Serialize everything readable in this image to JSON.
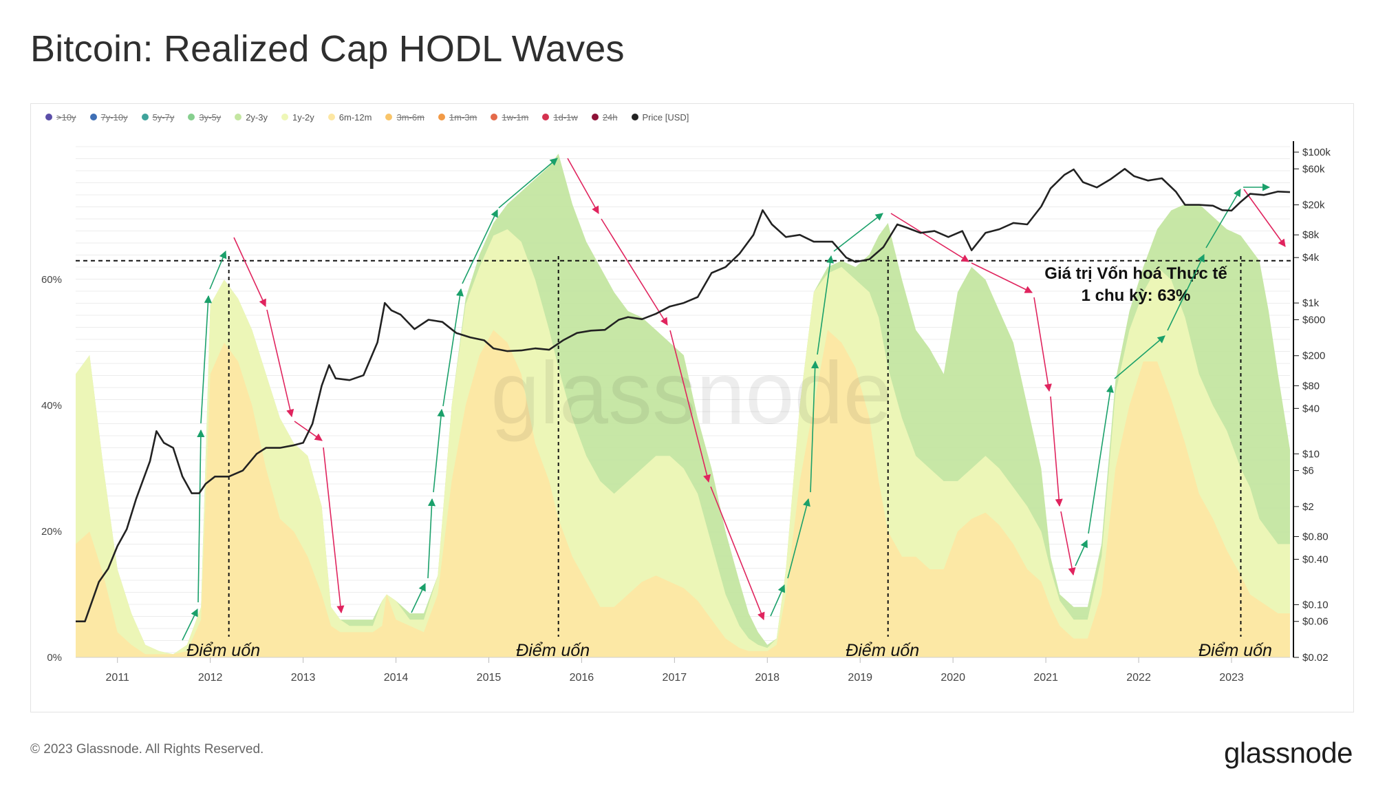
{
  "page": {
    "title": "Bitcoin: Realized Cap HODL Waves",
    "footer": "© 2023 Glassnode. All Rights Reserved.",
    "brand": "glassnode",
    "watermark": "glassnode"
  },
  "legend": [
    {
      "label": ">10y",
      "color": "#5b4ea8",
      "enabled": false
    },
    {
      "label": "7y-10y",
      "color": "#3f6fb5",
      "enabled": false
    },
    {
      "label": "5y-7y",
      "color": "#3fa39b",
      "enabled": false
    },
    {
      "label": "3y-5y",
      "color": "#86cf8e",
      "enabled": false
    },
    {
      "label": "2y-3y",
      "color": "#c4e6a1",
      "enabled": true
    },
    {
      "label": "1y-2y",
      "color": "#eef7b7",
      "enabled": true
    },
    {
      "label": "6m-12m",
      "color": "#fde7a3",
      "enabled": true
    },
    {
      "label": "3m-6m",
      "color": "#f9c56a",
      "enabled": false
    },
    {
      "label": "1m-3m",
      "color": "#f29a46",
      "enabled": false
    },
    {
      "label": "1w-1m",
      "color": "#e46a4a",
      "enabled": false
    },
    {
      "label": "1d-1w",
      "color": "#d4324f",
      "enabled": false
    },
    {
      "label": "24h",
      "color": "#8e1237",
      "enabled": false
    },
    {
      "label": "Price [USD]",
      "color": "#222222",
      "enabled": true
    }
  ],
  "annotations": {
    "threshold_label_line1": "Giá trị Vốn hoá Thực tế",
    "threshold_label_line2": "1 chu kỳ: 63%",
    "inflection_label": "Điểm uốn",
    "inflection_years": [
      2012.2,
      2015.75,
      2019.3,
      2023.1
    ]
  },
  "chart_data": {
    "type": "area",
    "x_axis": {
      "ticks": [
        "2011",
        "2012",
        "2013",
        "2014",
        "2015",
        "2016",
        "2017",
        "2018",
        "2019",
        "2020",
        "2021",
        "2022",
        "2023"
      ],
      "range": [
        2010.55,
        2023.63
      ]
    },
    "y_axis_left": {
      "ticks": [
        "0%",
        "20%",
        "40%",
        "60%"
      ],
      "range": [
        0,
        82
      ]
    },
    "y_axis_right": {
      "scale": "log",
      "ticks": [
        "$100k",
        "$60k",
        "$20k",
        "$8k",
        "$4k",
        "$1k",
        "$600",
        "$200",
        "$80",
        "$40",
        "$10",
        "$6",
        "$2",
        "$0.80",
        "$0.40",
        "$0.10",
        "$0.06",
        "$0.02"
      ],
      "range": [
        0.02,
        140000
      ]
    },
    "threshold_pct": 63,
    "x": [
      2010.55,
      2010.7,
      2010.85,
      2011.0,
      2011.15,
      2011.3,
      2011.45,
      2011.6,
      2011.75,
      2011.9,
      2012.0,
      2012.15,
      2012.3,
      2012.45,
      2012.6,
      2012.75,
      2012.9,
      2013.05,
      2013.2,
      2013.3,
      2013.4,
      2013.5,
      2013.6,
      2013.75,
      2013.85,
      2013.9,
      2014.0,
      2014.15,
      2014.3,
      2014.45,
      2014.6,
      2014.75,
      2014.9,
      2015.05,
      2015.2,
      2015.35,
      2015.5,
      2015.65,
      2015.75,
      2015.9,
      2016.05,
      2016.2,
      2016.35,
      2016.5,
      2016.65,
      2016.8,
      2016.95,
      2017.1,
      2017.25,
      2017.4,
      2017.55,
      2017.7,
      2017.8,
      2017.9,
      2018.0,
      2018.1,
      2018.2,
      2018.35,
      2018.5,
      2018.65,
      2018.8,
      2018.95,
      2019.1,
      2019.2,
      2019.3,
      2019.45,
      2019.6,
      2019.75,
      2019.9,
      2020.05,
      2020.2,
      2020.35,
      2020.5,
      2020.65,
      2020.8,
      2020.95,
      2021.05,
      2021.15,
      2021.3,
      2021.45,
      2021.6,
      2021.75,
      2021.9,
      2022.05,
      2022.2,
      2022.35,
      2022.5,
      2022.65,
      2022.8,
      2022.95,
      2023.1,
      2023.2,
      2023.3,
      2023.4,
      2023.5,
      2023.63
    ],
    "series": [
      {
        "name": "6m-12m",
        "color": "#fde7a3",
        "values": [
          18,
          20,
          13,
          4,
          2,
          0.5,
          0.5,
          0.5,
          1,
          6,
          45,
          50,
          47,
          40,
          30,
          22,
          20,
          16,
          10,
          5,
          4,
          4,
          4,
          4,
          5,
          10,
          6,
          5,
          4,
          10,
          28,
          40,
          48,
          52,
          50,
          45,
          34,
          28,
          22,
          16,
          12,
          8,
          8,
          10,
          12,
          13,
          12,
          11,
          9,
          6,
          3,
          1.5,
          1,
          1,
          1,
          2,
          10,
          28,
          40,
          52,
          50,
          46,
          38,
          28,
          20,
          16,
          16,
          14,
          14,
          20,
          22,
          23,
          21,
          18,
          14,
          12,
          8,
          5,
          3,
          3,
          10,
          30,
          40,
          47,
          47,
          41,
          34,
          26,
          22,
          17,
          13,
          10,
          9,
          8,
          7,
          7
        ]
      },
      {
        "name": "1y-2y",
        "color": "#eef7b7",
        "values": [
          45,
          48,
          30,
          14,
          7,
          2,
          1,
          0.5,
          2,
          8,
          56,
          60,
          57,
          52,
          45,
          38,
          34,
          32,
          24,
          8,
          6,
          5,
          5,
          5,
          9,
          10,
          9,
          6,
          6,
          13,
          40,
          56,
          62,
          67,
          68,
          66,
          60,
          52,
          46,
          38,
          32,
          28,
          26,
          28,
          30,
          32,
          32,
          30,
          26,
          18,
          10,
          5,
          3,
          2,
          1.5,
          3,
          14,
          40,
          58,
          61,
          62,
          60,
          58,
          54,
          46,
          38,
          32,
          30,
          28,
          28,
          30,
          32,
          30,
          27,
          24,
          20,
          14,
          9,
          6,
          6,
          16,
          42,
          52,
          58,
          62,
          60,
          54,
          45,
          40,
          36,
          30,
          27,
          22,
          20,
          18,
          18
        ]
      },
      {
        "name": "2y-3y",
        "color": "#c4e6a1",
        "values": [
          45,
          48,
          30,
          14,
          7,
          2,
          1,
          0.5,
          2,
          8,
          56,
          60,
          57,
          52,
          45,
          38,
          34,
          32,
          24,
          8,
          6,
          6,
          6,
          6,
          9,
          10,
          9,
          7,
          7,
          13,
          40,
          57,
          64,
          69,
          72,
          74,
          76,
          78,
          80,
          72,
          66,
          62,
          58,
          55,
          54,
          52,
          50,
          48,
          38,
          30,
          20,
          12,
          7,
          4,
          2,
          3,
          14,
          40,
          58,
          62,
          63,
          62,
          64,
          67,
          69,
          60,
          52,
          49,
          45,
          58,
          62,
          60,
          55,
          50,
          40,
          30,
          16,
          10,
          8,
          8,
          18,
          44,
          55,
          62,
          68,
          71,
          72,
          72,
          70,
          68,
          67,
          65,
          63,
          55,
          45,
          33
        ]
      }
    ],
    "price": {
      "name": "Price [USD]",
      "x": [
        2010.55,
        2010.65,
        2010.8,
        2010.9,
        2011.0,
        2011.1,
        2011.2,
        2011.35,
        2011.42,
        2011.5,
        2011.6,
        2011.7,
        2011.8,
        2011.88,
        2011.95,
        2012.05,
        2012.2,
        2012.35,
        2012.5,
        2012.6,
        2012.75,
        2012.9,
        2013.0,
        2013.1,
        2013.2,
        2013.28,
        2013.35,
        2013.5,
        2013.65,
        2013.8,
        2013.88,
        2013.95,
        2014.05,
        2014.2,
        2014.35,
        2014.5,
        2014.65,
        2014.8,
        2014.95,
        2015.05,
        2015.2,
        2015.35,
        2015.5,
        2015.65,
        2015.8,
        2015.95,
        2016.1,
        2016.25,
        2016.4,
        2016.5,
        2016.65,
        2016.8,
        2016.95,
        2017.1,
        2017.25,
        2017.4,
        2017.55,
        2017.7,
        2017.85,
        2017.95,
        2018.05,
        2018.2,
        2018.35,
        2018.5,
        2018.7,
        2018.85,
        2018.95,
        2019.1,
        2019.25,
        2019.4,
        2019.5,
        2019.65,
        2019.8,
        2019.95,
        2020.1,
        2020.2,
        2020.35,
        2020.5,
        2020.65,
        2020.8,
        2020.95,
        2021.05,
        2021.2,
        2021.3,
        2021.4,
        2021.55,
        2021.7,
        2021.85,
        2021.95,
        2022.1,
        2022.25,
        2022.4,
        2022.5,
        2022.65,
        2022.8,
        2022.9,
        2023.0,
        2023.1,
        2023.2,
        2023.35,
        2023.5,
        2023.63
      ],
      "y": [
        0.06,
        0.06,
        0.2,
        0.3,
        0.6,
        1,
        2.5,
        8,
        20,
        14,
        12,
        5,
        3,
        3,
        4,
        5,
        5,
        6,
        10,
        12,
        12,
        13,
        14,
        25,
        80,
        150,
        100,
        95,
        110,
        300,
        1000,
        800,
        700,
        450,
        600,
        560,
        400,
        350,
        320,
        250,
        230,
        235,
        250,
        240,
        320,
        400,
        430,
        440,
        600,
        650,
        610,
        720,
        900,
        1000,
        1200,
        2500,
        3000,
        4500,
        8000,
        17000,
        11000,
        7500,
        8000,
        6500,
        6500,
        4000,
        3500,
        3800,
        5500,
        11000,
        10000,
        8500,
        9000,
        7500,
        9000,
        5000,
        8500,
        9500,
        11500,
        11000,
        19000,
        33000,
        50000,
        59000,
        40000,
        34000,
        44000,
        60000,
        48000,
        42000,
        45000,
        30000,
        20000,
        20000,
        19500,
        17000,
        16800,
        22000,
        28000,
        27000,
        30000,
        29500
      ]
    }
  }
}
